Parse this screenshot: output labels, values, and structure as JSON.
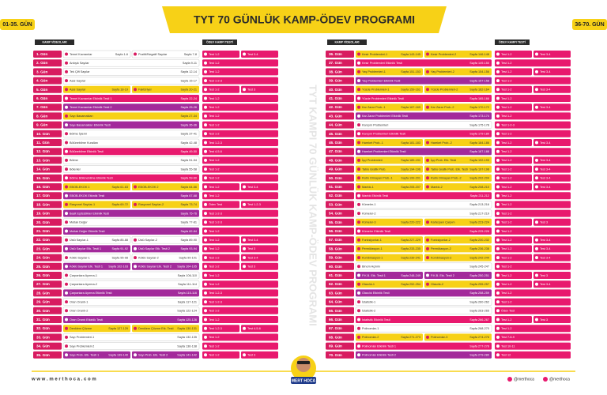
{
  "header": {
    "title": "TYT 70 GÜNLÜK KAMP-ÖDEV PROGRAMI",
    "left_badge": "01-35. GÜN",
    "right_badge": "36-70. GÜN"
  },
  "columns": {
    "videos": "KAMP VİDEOLARI",
    "tests": "ÖDEV KAMPI TESTİ"
  },
  "watermark": "TYT KAMPI 70 GÜNLÜK KAMP-ÖDEV PROGRAMI",
  "days": [
    {
      "day": "1. Gün",
      "color": "#ffffff",
      "videos": [
        {
          "topic": "Temel Kavramlar",
          "page": "Sayfa 1-6"
        },
        {
          "topic": "Pozitif/Negatif Sayılar",
          "page": "Sayfa 7-8"
        }
      ],
      "tests": [
        "Test 1-2",
        "Test 3-4"
      ]
    },
    {
      "day": "2. Gün",
      "color": "#ffffff",
      "videos": [
        {
          "topic": "Ardışık Sayılar",
          "page": "Sayfa 9-11"
        }
      ],
      "tests": [
        "Test 1-2"
      ]
    },
    {
      "day": "3. Gün",
      "color": "#ffffff",
      "videos": [
        {
          "topic": "Tek Çift Sayılar",
          "page": "Sayfa 12-14"
        }
      ],
      "tests": [
        "Test 1-2"
      ]
    },
    {
      "day": "4. Gün",
      "color": "#ffffff",
      "videos": [
        {
          "topic": "Asal Sayılar",
          "page": "Sayfa 15-17"
        }
      ],
      "tests": [
        "Test 1-2-3"
      ]
    },
    {
      "day": "5. Gün",
      "color": "#f7d117",
      "videos": [
        {
          "topic": "Asal Sayılar",
          "page": "Sayfa 18-19"
        },
        {
          "topic": "Faktöriyel",
          "page": "Sayfa 20-21"
        }
      ],
      "tests": [
        "Test 1-2",
        "Test 3"
      ]
    },
    {
      "day": "6. Gün",
      "color": "#e8196e",
      "videos": [
        {
          "topic": "Temel Kavramlar Etkinlik Testi 1",
          "page": "Sayfa 22-24"
        }
      ],
      "tests": [
        "Test 1-2"
      ]
    },
    {
      "day": "7. Gün",
      "color": "#a32a9b",
      "videos": [
        {
          "topic": "Temel Kavramlar Etkinlik Testi 2",
          "page": "Sayfa 25-26"
        }
      ],
      "tests": [
        "Test 1-2"
      ]
    },
    {
      "day": "8. Gün",
      "color": "#f7d117",
      "videos": [
        {
          "topic": "Sayı Basamakları",
          "page": "Sayfa 27-34"
        }
      ],
      "tests": [
        "Test 1-2"
      ]
    },
    {
      "day": "9. Gün",
      "color": "#a32a9b",
      "videos": [
        {
          "topic": "Sayı Basamakları Etkinlik Testi",
          "page": "Sayfa 35-36"
        }
      ],
      "tests": [
        "Test 1-2"
      ]
    },
    {
      "day": "10. Gün",
      "color": "#ffffff",
      "videos": [
        {
          "topic": "Bölme İşlemi",
          "page": "Sayfa 37-41"
        }
      ],
      "tests": [
        "Test 1-2"
      ]
    },
    {
      "day": "11. Gün",
      "color": "#ffffff",
      "videos": [
        {
          "topic": "Bölünebilme Kuralları",
          "page": "Sayfa 42-48"
        }
      ],
      "tests": [
        "Test 1-2-3"
      ]
    },
    {
      "day": "12. Gün",
      "color": "#e8196e",
      "videos": [
        {
          "topic": "Bölünebilme Etkinlik Testi",
          "page": "Sayfa 49-50"
        }
      ],
      "tests": [
        "Test 4-5-6"
      ]
    },
    {
      "day": "13. Gün",
      "color": "#ffffff",
      "videos": [
        {
          "topic": "Bölme",
          "page": "Sayfa 51-54"
        }
      ],
      "tests": [
        "Test 1-2"
      ]
    },
    {
      "day": "14. Gün",
      "color": "#ffffff",
      "videos": [
        {
          "topic": "Bölenler",
          "page": "Sayfa 55-58"
        }
      ],
      "tests": [
        "Test 1-2"
      ]
    },
    {
      "day": "15. Gün",
      "color": "#e8196e",
      "videos": [
        {
          "topic": "Bölme Bölünebilme Etkinlik Testi",
          "page": "Sayfa 59-60"
        }
      ],
      "tests": [
        "Test 1-2"
      ]
    },
    {
      "day": "16. Gün",
      "color": "#f7d117",
      "videos": [
        {
          "topic": "EBOB-EKOK 1",
          "page": "Sayfa 61-63"
        },
        {
          "topic": "EBOB-EKOK 2",
          "page": "Sayfa 64-66"
        }
      ],
      "tests": [
        "Test 1-2",
        "Test 3-4"
      ]
    },
    {
      "day": "17. Gün",
      "color": "#a32a9b",
      "videos": [
        {
          "topic": "EBOB-EKOK Etkinlik Testi",
          "page": "Sayfa 67-68"
        }
      ],
      "tests": [
        "Test 1-2"
      ]
    },
    {
      "day": "18. Gün",
      "color": "#f7d117",
      "videos": [
        {
          "topic": "Rasyonel Sayılar-1",
          "page": "Sayfa 69-72"
        },
        {
          "topic": "Rasyonel Sayılar-2",
          "page": "Sayfa 73-74"
        }
      ],
      "tests": [
        "Ödev Test",
        "Test 1-2-3"
      ]
    },
    {
      "day": "19. Gün",
      "color": "#a32a9b",
      "videos": [
        {
          "topic": "Basit Eşitsizlikler Etkinlik Testi",
          "page": "Sayfa 75-76"
        }
      ],
      "tests": [
        "Test 1-2-3"
      ]
    },
    {
      "day": "20. Gün",
      "color": "#ffffff",
      "videos": [
        {
          "topic": "Mutlak Değer",
          "page": "Sayfa 77-81"
        }
      ],
      "tests": [
        "Test 1-2-3"
      ]
    },
    {
      "day": "21. Gün",
      "color": "#a32a9b",
      "videos": [
        {
          "topic": "Mutlak Değer Etkinlik Testi",
          "page": "Sayfa 82-84"
        }
      ],
      "tests": [
        "Test 1-2"
      ]
    },
    {
      "day": "22. Gün",
      "color": "#ffffff",
      "videos": [
        {
          "topic": "Üslü Sayılar-1",
          "page": "Sayfa 85-88"
        },
        {
          "topic": "Üslü Sayılar-2",
          "page": "Sayfa 89-90"
        }
      ],
      "tests": [
        "Test 1-2",
        "Test 3-4"
      ]
    },
    {
      "day": "23. Gün",
      "color": "#a32a9b",
      "videos": [
        {
          "topic": "Üslü Sayılar Etk. Testi 1",
          "page": "Sayfa 91-92"
        },
        {
          "topic": "Üslü Sayılar Etk. Testi 2",
          "page": "Sayfa 93-94"
        }
      ],
      "tests": [
        "Test 1-2",
        "Test 3"
      ]
    },
    {
      "day": "24. Gün",
      "color": "#ffffff",
      "videos": [
        {
          "topic": "Köklü Sayılar-1",
          "page": "Sayfa 95-98"
        },
        {
          "topic": "Köklü Sayılar-2",
          "page": "Sayfa 99-101"
        }
      ],
      "tests": [
        "Test 1-2",
        "Test 3-4"
      ]
    },
    {
      "day": "25. Gün",
      "color": "#a32a9b",
      "videos": [
        {
          "topic": "Köklü Sayılar Etk. Testi 1",
          "page": "Sayfa 102-103"
        },
        {
          "topic": "Köklü Sayılar Etk. Testi 2",
          "page": "Sayfa 104-105"
        }
      ],
      "tests": [
        "Test 1-2",
        "Test 3"
      ]
    },
    {
      "day": "26. Gün",
      "color": "#ffffff",
      "videos": [
        {
          "topic": "Çarpanlara Ayırma-1",
          "page": "Sayfa 106-110"
        }
      ],
      "tests": [
        "Test 1-2"
      ]
    },
    {
      "day": "27. Gün",
      "color": "#ffffff",
      "videos": [
        {
          "topic": "Çarpanlara Ayırma-2",
          "page": "Sayfa 111-114"
        }
      ],
      "tests": [
        "Test 1-2"
      ]
    },
    {
      "day": "28. Gün",
      "color": "#a32a9b",
      "videos": [
        {
          "topic": "Çarpanlara Ayırma Etkinlik Testi",
          "page": "Sayfa 115-116"
        }
      ],
      "tests": [
        "Test 1-2-3"
      ]
    },
    {
      "day": "29. Gün",
      "color": "#ffffff",
      "videos": [
        {
          "topic": "Oran Orantı-1",
          "page": "Sayfa 117-121"
        }
      ],
      "tests": [
        "Test 1-2-3"
      ]
    },
    {
      "day": "30. Gün",
      "color": "#ffffff",
      "videos": [
        {
          "topic": "Oran Orantı-2",
          "page": "Sayfa 122-124"
        }
      ],
      "tests": [
        "Test 1-2"
      ]
    },
    {
      "day": "31. Gün",
      "color": "#a32a9b",
      "videos": [
        {
          "topic": "Oran Orantı Etkinlik Testi",
          "page": "Sayfa 125-126"
        }
      ],
      "tests": [
        "Test 1-2"
      ]
    },
    {
      "day": "32. Gün",
      "color": "#f7d117",
      "videos": [
        {
          "topic": "Denklem Çözme",
          "page": "Sayfa 127-129"
        },
        {
          "topic": "Denklem Çözme Etk. Testi",
          "page": "Sayfa 130-131"
        }
      ],
      "tests": [
        "Test 1-2-3",
        "Test 4-5-6"
      ]
    },
    {
      "day": "33. Gün",
      "color": "#ffffff",
      "videos": [
        {
          "topic": "Sayı Problemleri-1",
          "page": "Sayfa 132-135"
        }
      ],
      "tests": [
        "Test 1-2"
      ]
    },
    {
      "day": "34. Gün",
      "color": "#ffffff",
      "videos": [
        {
          "topic": "Sayı Problemleri-2",
          "page": "Sayfa 136-138"
        }
      ],
      "tests": [
        "Test 1-2"
      ]
    },
    {
      "day": "35. Gün",
      "color": "#a32a9b",
      "videos": [
        {
          "topic": "Sayı Prob. Etk. Testi 1",
          "page": "Sayfa 139-140"
        },
        {
          "topic": "Sayı Prob. Etk. Testi 2",
          "page": "Sayfa 141-142"
        }
      ],
      "tests": [
        "Test 1-2",
        "Test 3"
      ]
    },
    {
      "day": "36. Gün",
      "color": "#f7d117",
      "videos": [
        {
          "topic": "Kesir Problemleri-1",
          "page": "Sayfa 143-145"
        },
        {
          "topic": "Kesir Problemleri-2",
          "page": "Sayfa 146-148"
        }
      ],
      "tests": [
        "Test 1-2",
        "Test 3-4"
      ]
    },
    {
      "day": "37. Gün",
      "color": "#e8196e",
      "videos": [
        {
          "topic": "Kesir Problemleri Etkinlik Testi",
          "page": "Sayfa 149-150"
        }
      ],
      "tests": [
        "Test 1-2"
      ]
    },
    {
      "day": "38. Gün",
      "color": "#f7d117",
      "videos": [
        {
          "topic": "Yaş Problemleri-1",
          "page": "Sayfa 151-153"
        },
        {
          "topic": "Yaş Problemleri-2",
          "page": "Sayfa 154-156"
        }
      ],
      "tests": [
        "Test 1-2",
        "Test 3-4"
      ]
    },
    {
      "day": "39. Gün",
      "color": "#a32a9b",
      "videos": [
        {
          "topic": "Yaş Problemleri Etkinlik Testi",
          "page": "Sayfa 157-158"
        }
      ],
      "tests": [
        "Test 1-2"
      ]
    },
    {
      "day": "40. Gün",
      "color": "#f7d117",
      "videos": [
        {
          "topic": "Yüzde Problemleri-1",
          "page": "Sayfa 159-161"
        },
        {
          "topic": "Yüzde Problemleri-2",
          "page": "Sayfa 162-164"
        }
      ],
      "tests": [
        "Test 1-2",
        "Test 3-4"
      ]
    },
    {
      "day": "41. Gün",
      "color": "#e8196e",
      "videos": [
        {
          "topic": "Yüzde Problemleri Etkinlik Testi",
          "page": "Sayfa 165-166"
        }
      ],
      "tests": [
        "Test 1-2"
      ]
    },
    {
      "day": "42. Gün",
      "color": "#f7d117",
      "videos": [
        {
          "topic": "Kar Zarar Prob.-1",
          "page": "Sayfa 167-169"
        },
        {
          "topic": "Kar Zarar Prob.-2",
          "page": "Sayfa 170-172"
        }
      ],
      "tests": [
        "Test 1-2",
        "Test 3-4"
      ]
    },
    {
      "day": "43. Gün",
      "color": "#a32a9b",
      "videos": [
        {
          "topic": "Kar Zarar Problemleri Etkinlik Testi",
          "page": "Sayfa 173-174"
        }
      ],
      "tests": [
        "Test 1-2"
      ]
    },
    {
      "day": "44. Gün",
      "color": "#ffffff",
      "videos": [
        {
          "topic": "Karışım Problemleri",
          "page": "Sayfa 175-178"
        }
      ],
      "tests": [
        "Test 1-2-3"
      ]
    },
    {
      "day": "45. Gün",
      "color": "#e8196e",
      "videos": [
        {
          "topic": "Karışım Problemleri Etkinlik Testi",
          "page": "Sayfa 179-180"
        }
      ],
      "tests": [
        "Test 1-2"
      ]
    },
    {
      "day": "46. Gün",
      "color": "#f7d117",
      "videos": [
        {
          "topic": "Hareket Prob.-1",
          "page": "Sayfa 181-183"
        },
        {
          "topic": "Hareket Prob.-2",
          "page": "Sayfa 184-186"
        }
      ],
      "tests": [
        "Test 1-2",
        "Test 3-4"
      ]
    },
    {
      "day": "47. Gün",
      "color": "#a32a9b",
      "videos": [
        {
          "topic": "Hareket Problemleri Etkinlik Testi",
          "page": "Sayfa 187-188"
        }
      ],
      "tests": [
        "Test 1-2"
      ]
    },
    {
      "day": "48. Gün",
      "color": "#f7d117",
      "videos": [
        {
          "topic": "İşçi Problemleri",
          "page": "Sayfa 189-191"
        },
        {
          "topic": "İşçi Prob. Etk. Testi",
          "page": "Sayfa 192-193"
        }
      ],
      "tests": [
        "Test 1-2",
        "Test 3-4"
      ]
    },
    {
      "day": "49. Gün",
      "color": "#f7d117",
      "videos": [
        {
          "topic": "Tablo Grafik Prob.",
          "page": "Sayfa 194-196"
        },
        {
          "topic": "Tablo Grafik Prob. Etk. Testi",
          "page": "Sayfa 197-198"
        }
      ],
      "tests": [
        "Test 1-2",
        "Test 3-4"
      ]
    },
    {
      "day": "50. Gün",
      "color": "#f7d117",
      "videos": [
        {
          "topic": "Rutin Olmayan Prob.-1",
          "page": "Sayfa 199-201"
        },
        {
          "topic": "Rutin Olmayan Prob.-2",
          "page": "Sayfa 202-204"
        }
      ],
      "tests": [
        "Test 1-2",
        "Test 3-4"
      ]
    },
    {
      "day": "51. Gün",
      "color": "#f7d117",
      "videos": [
        {
          "topic": "Mantık-1",
          "page": "Sayfa 205-207"
        },
        {
          "topic": "Mantık-2",
          "page": "Sayfa 208-210"
        }
      ],
      "tests": [
        "Test 1-2",
        "Test 3-4"
      ]
    },
    {
      "day": "52. Gün",
      "color": "#e8196e",
      "videos": [
        {
          "topic": "Mantık Etkinlik Testi",
          "page": "Sayfa 211-212"
        }
      ],
      "tests": [
        "Test 1-2"
      ]
    },
    {
      "day": "53. Gün",
      "color": "#ffffff",
      "videos": [
        {
          "topic": "Kümeler-1",
          "page": "Sayfa 213-216"
        }
      ],
      "tests": [
        "Test 1-2"
      ]
    },
    {
      "day": "54. Gün",
      "color": "#ffffff",
      "videos": [
        {
          "topic": "Kümeler-2",
          "page": "Sayfa 217-219"
        }
      ],
      "tests": [
        "Test 1-2"
      ]
    },
    {
      "day": "55. Gün",
      "color": "#f7d117",
      "videos": [
        {
          "topic": "Kümeler-3",
          "page": "Sayfa 220-222"
        },
        {
          "topic": "Kartezyen Çarpım",
          "page": "Sayfa 223-224"
        }
      ],
      "tests": [
        "Test 1-2",
        "Test 3"
      ]
    },
    {
      "day": "56. Gün",
      "color": "#e8196e",
      "videos": [
        {
          "topic": "Kümeler Etkinlik Testi",
          "page": "Sayfa 225-226"
        }
      ],
      "tests": [
        "Test 1-2"
      ]
    },
    {
      "day": "57. Gün",
      "color": "#f7d117",
      "videos": [
        {
          "topic": "Fonksiyonlar-1",
          "page": "Sayfa 227-229"
        },
        {
          "topic": "Fonksiyonlar-2",
          "page": "Sayfa 230-232"
        }
      ],
      "tests": [
        "Test 1-2",
        "Test 3-4"
      ]
    },
    {
      "day": "58. Gün",
      "color": "#f7d117",
      "videos": [
        {
          "topic": "Permütasyon-1",
          "page": "Sayfa 233-235"
        },
        {
          "topic": "Permütasyon-2",
          "page": "Sayfa 236-238"
        }
      ],
      "tests": [
        "Test 1-2",
        "Test 3-4"
      ]
    },
    {
      "day": "59. Gün",
      "color": "#f7d117",
      "videos": [
        {
          "topic": "Kombinasyon-1",
          "page": "Sayfa 239-241"
        },
        {
          "topic": "Kombinasyon-2",
          "page": "Sayfa 242-244"
        }
      ],
      "tests": [
        "Test 1-2",
        "Test 3-4"
      ]
    },
    {
      "day": "60. Gün",
      "color": "#ffffff",
      "videos": [
        {
          "topic": "Binom Açılımı",
          "page": "Sayfa 245-247"
        }
      ],
      "tests": [
        "Test 1-2"
      ]
    },
    {
      "day": "61. Gün",
      "color": "#a32a9b",
      "videos": [
        {
          "topic": "P.K.B. Etk. Testi 1",
          "page": "Sayfa 248-249"
        },
        {
          "topic": "P.K.B. Etk. Testi 2",
          "page": "Sayfa 250-251"
        }
      ],
      "tests": [
        "Test 1-2",
        "Test 3"
      ]
    },
    {
      "day": "62. Gün",
      "color": "#f7d117",
      "videos": [
        {
          "topic": "Olasılık-1",
          "page": "Sayfa 252-254"
        },
        {
          "topic": "Olasılık-2",
          "page": "Sayfa 255-257"
        }
      ],
      "tests": [
        "Test 1-2",
        "Test 3-4"
      ]
    },
    {
      "day": "63. Gün",
      "color": "#a32a9b",
      "videos": [
        {
          "topic": "Olasılık Etkinlik Testi",
          "page": "Sayfa 258-259"
        }
      ],
      "tests": [
        "Test 1-2"
      ]
    },
    {
      "day": "64. Gün",
      "color": "#ffffff",
      "videos": [
        {
          "topic": "İstatistik-1",
          "page": "Sayfa 260-262"
        }
      ],
      "tests": [
        "Test 1-2"
      ]
    },
    {
      "day": "65. Gün",
      "color": "#ffffff",
      "videos": [
        {
          "topic": "İstatistik-2",
          "page": "Sayfa 263-265"
        }
      ],
      "tests": [
        "Ödev Test"
      ]
    },
    {
      "day": "66. Gün",
      "color": "#e8196e",
      "videos": [
        {
          "topic": "İstatistik Etkinlik Testi",
          "page": "Sayfa 266-267"
        }
      ],
      "tests": [
        "Test 1-2",
        "Test 3"
      ]
    },
    {
      "day": "67. Gün",
      "color": "#ffffff",
      "videos": [
        {
          "topic": "Polinomlar-1",
          "page": "Sayfa 268-270"
        }
      ],
      "tests": [
        "Test 1-2"
      ]
    },
    {
      "day": "68. Gün",
      "color": "#f7d117",
      "videos": [
        {
          "topic": "Polinomlar-2",
          "page": "Sayfa 271-273"
        },
        {
          "topic": "Polinomlar-3",
          "page": "Sayfa 274-276"
        }
      ],
      "tests": [
        "Test 7-8-9"
      ]
    },
    {
      "day": "69. Gün",
      "color": "#e8196e",
      "videos": [
        {
          "topic": "Polinomlar Etkinlik Testi 1",
          "page": "Sayfa 277-278"
        }
      ],
      "tests": [
        "Test 10-11"
      ]
    },
    {
      "day": "70. Gün",
      "color": "#a32a9b",
      "videos": [
        {
          "topic": "Polinomlar Etkinlik Testi 2",
          "page": "Sayfa 279-280"
        }
      ],
      "tests": [
        "Test 12"
      ]
    }
  ],
  "footer": {
    "website": "w w w . m e r t h o c a . c o m",
    "mascot": "MERT HOCA",
    "social": [
      "@merthoca",
      "@merthoca"
    ]
  }
}
